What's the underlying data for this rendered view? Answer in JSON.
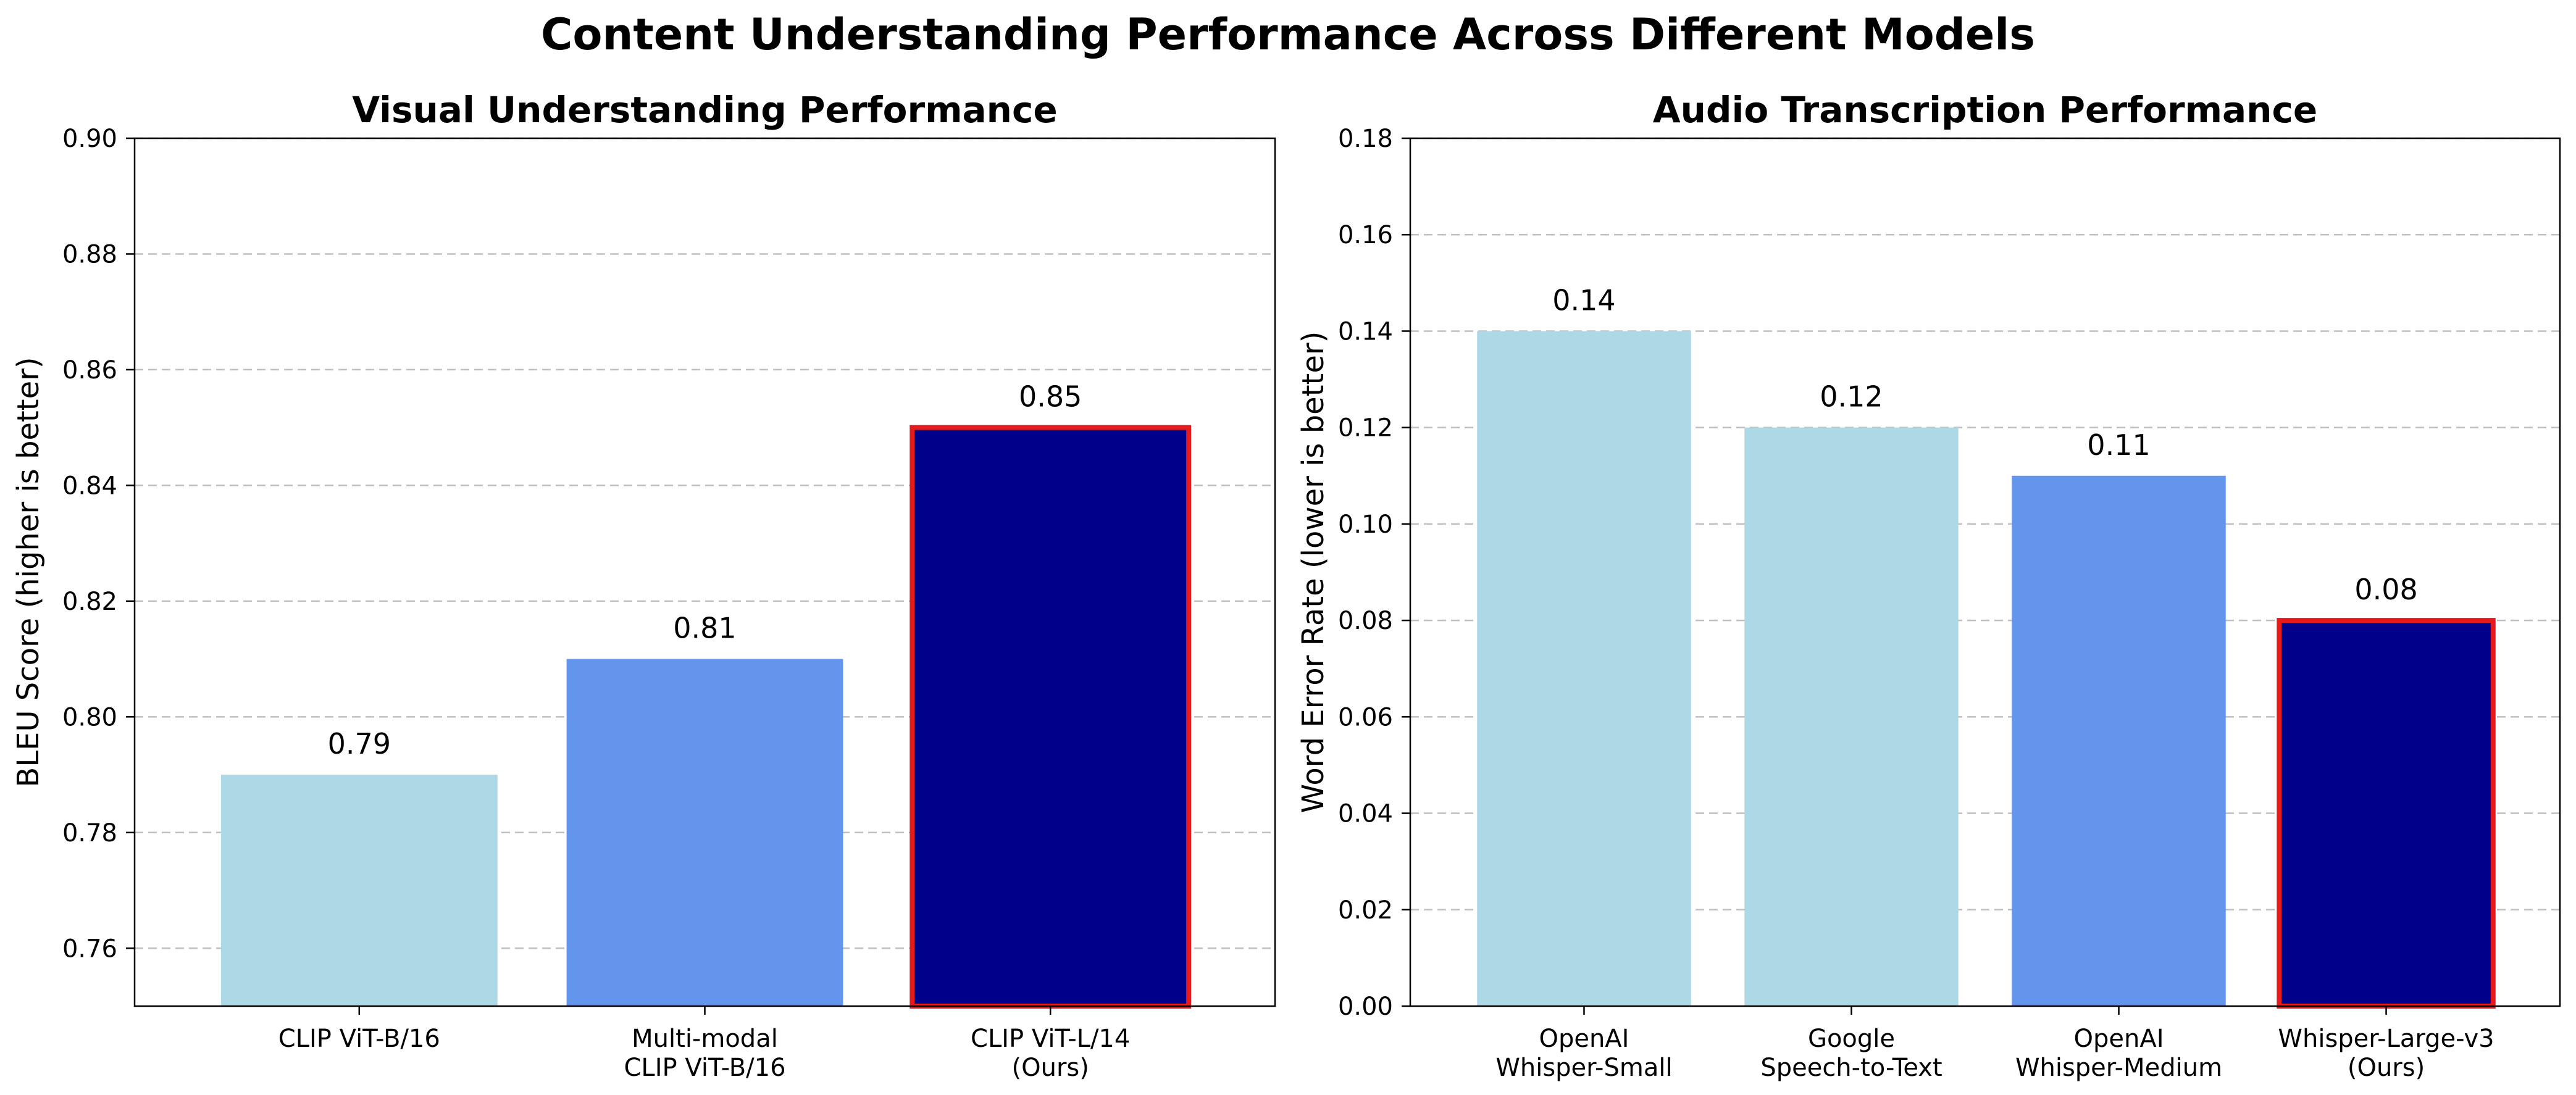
{
  "figure": {
    "suptitle": "Content Understanding Performance Across Different Models"
  },
  "colors": {
    "light": "#add8e6",
    "medium": "#6495ed",
    "dark": "#00008b",
    "highlight_edge": "#e41a1c"
  },
  "chart_data": [
    {
      "type": "bar",
      "title": "Visual Understanding Performance",
      "xlabel": "",
      "ylabel": "BLEU Score (higher is better)",
      "ylim": [
        0.75,
        0.9
      ],
      "yticks": [
        "0.76",
        "0.78",
        "0.80",
        "0.82",
        "0.84",
        "0.86",
        "0.88",
        "0.90"
      ],
      "grid": "y-dashed",
      "categories": [
        [
          "CLIP ViT-B/16"
        ],
        [
          "Multi-modal",
          "CLIP ViT-B/16"
        ],
        [
          "CLIP ViT-L/14",
          "(Ours)"
        ]
      ],
      "values": [
        0.79,
        0.81,
        0.85
      ],
      "value_labels": [
        "0.79",
        "0.81",
        "0.85"
      ],
      "bar_colors": [
        "#add8e6",
        "#6495ed",
        "#00008b"
      ],
      "highlighted": [
        false,
        false,
        true
      ]
    },
    {
      "type": "bar",
      "title": "Audio Transcription Performance",
      "xlabel": "",
      "ylabel": "Word Error Rate (lower is better)",
      "ylim": [
        0.0,
        0.18
      ],
      "yticks": [
        "0.00",
        "0.02",
        "0.04",
        "0.06",
        "0.08",
        "0.10",
        "0.12",
        "0.14",
        "0.16",
        "0.18"
      ],
      "grid": "y-dashed",
      "categories": [
        [
          "OpenAI",
          "Whisper-Small"
        ],
        [
          "Google",
          "Speech-to-Text"
        ],
        [
          "OpenAI",
          "Whisper-Medium"
        ],
        [
          "Whisper-Large-v3",
          "(Ours)"
        ]
      ],
      "values": [
        0.14,
        0.12,
        0.11,
        0.08
      ],
      "value_labels": [
        "0.14",
        "0.12",
        "0.11",
        "0.08"
      ],
      "bar_colors": [
        "#add8e6",
        "#add8e6",
        "#6495ed",
        "#00008b"
      ],
      "highlighted": [
        false,
        false,
        false,
        true
      ]
    }
  ]
}
